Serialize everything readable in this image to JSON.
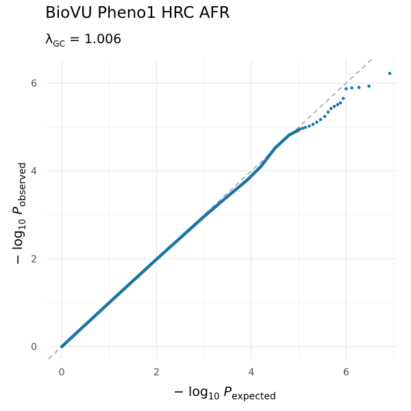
{
  "chart_data": {
    "type": "scatter",
    "title": "BioVU Pheno1 HRC AFR",
    "subtitle": {
      "lambda_symbol": "λ",
      "lambda_sub": "GC",
      "equals": " = ",
      "value": "1.006"
    },
    "xlabel": {
      "prefix": "− log",
      "base": "10",
      "var": "P",
      "sub": "expected"
    },
    "ylabel": {
      "prefix": "− log",
      "base": "10",
      "var": "P",
      "sub": "observed"
    },
    "xlim": [
      -0.32,
      7.05
    ],
    "ylim": [
      -0.28,
      6.55
    ],
    "x_ticks": [
      0,
      2,
      4,
      6
    ],
    "y_ticks": [
      0,
      2,
      4,
      6
    ],
    "grid": true,
    "point_color": "#1b75a3",
    "reference_line": {
      "slope": 1,
      "intercept": 0,
      "color": "#aaaaaa",
      "dash": true
    },
    "dense_curve": [
      [
        0,
        0
      ],
      [
        1,
        1
      ],
      [
        2,
        1.99
      ],
      [
        3,
        2.96
      ],
      [
        3.5,
        3.42
      ],
      [
        3.9,
        3.78
      ],
      [
        4.2,
        4.1
      ],
      [
        4.5,
        4.52
      ],
      [
        4.8,
        4.82
      ],
      [
        5.0,
        4.93
      ]
    ],
    "points": [
      {
        "x": 5.02,
        "y": 4.95
      },
      {
        "x": 5.08,
        "y": 4.97
      },
      {
        "x": 5.14,
        "y": 4.99
      },
      {
        "x": 5.22,
        "y": 5.02
      },
      {
        "x": 5.3,
        "y": 5.06
      },
      {
        "x": 5.38,
        "y": 5.11
      },
      {
        "x": 5.46,
        "y": 5.17
      },
      {
        "x": 5.55,
        "y": 5.24
      },
      {
        "x": 5.62,
        "y": 5.34
      },
      {
        "x": 5.68,
        "y": 5.42
      },
      {
        "x": 5.75,
        "y": 5.47
      },
      {
        "x": 5.82,
        "y": 5.51
      },
      {
        "x": 5.88,
        "y": 5.55
      },
      {
        "x": 5.94,
        "y": 5.65
      },
      {
        "x": 6.0,
        "y": 5.87
      },
      {
        "x": 6.12,
        "y": 5.89
      },
      {
        "x": 6.27,
        "y": 5.9
      },
      {
        "x": 6.48,
        "y": 5.93
      },
      {
        "x": 6.92,
        "y": 6.22
      }
    ]
  }
}
